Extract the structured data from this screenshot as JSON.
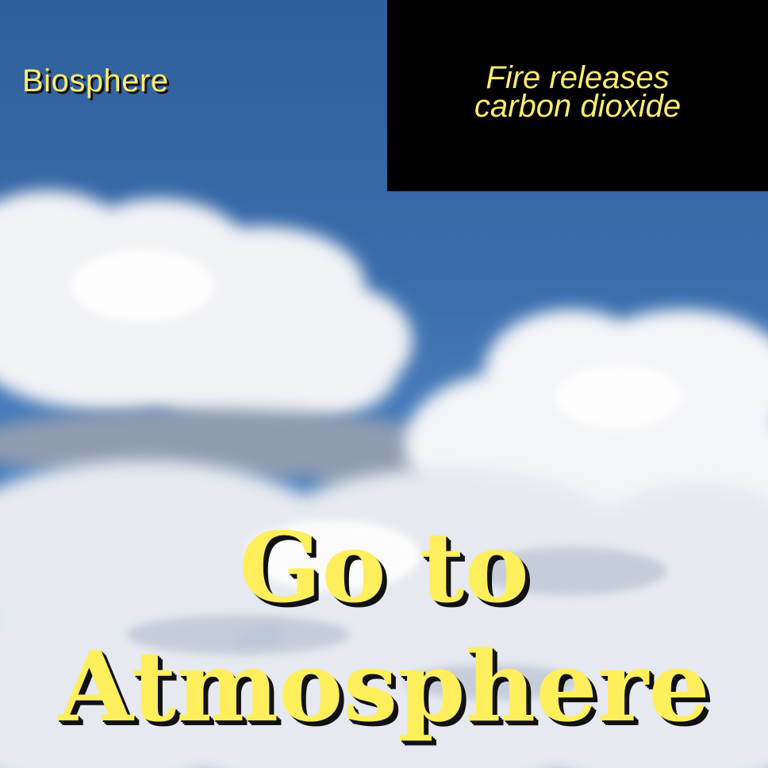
{
  "header": {
    "biome_label": "Biosphere"
  },
  "fact_box": {
    "line1": "Fire releases",
    "line2": "carbon dioxide"
  },
  "navigation": {
    "button_line1": "Go to",
    "button_line2": "Atmosphere"
  },
  "colors": {
    "sky": "#3a6cab",
    "text_yellow": "#ffec6a",
    "fact_box_bg": "#000000"
  }
}
